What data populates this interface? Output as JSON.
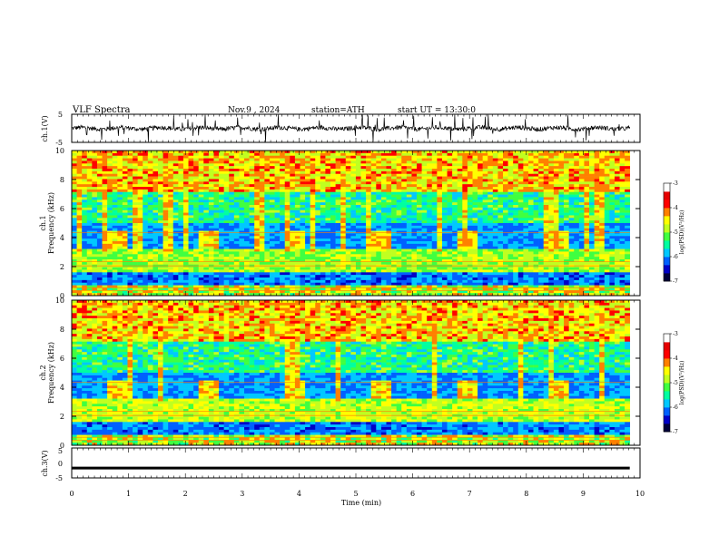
{
  "header": {
    "title": "VLF  Spectra",
    "date": "Nov.9  , 2024",
    "station": "station=ATH",
    "start": "start  UT  =   13:30:0"
  },
  "colors": {
    "colormap": [
      "#00003a",
      "#0000c8",
      "#0060ff",
      "#00c8ff",
      "#00ffa0",
      "#40ff40",
      "#c0ff20",
      "#ffff00",
      "#ff8000",
      "#ff0000",
      "#e60000",
      "#ffffff"
    ]
  },
  "chart_data": [
    {
      "type": "line",
      "panel": "ch1-waveform",
      "ylabel": "ch.1(V)",
      "ylim": [
        -5,
        5
      ],
      "yticks": [
        "5",
        "-5"
      ],
      "xlim": [
        0,
        10
      ],
      "description_values": {
        "baseline": 0,
        "noise_amplitude": 1,
        "spike_max": 5
      }
    },
    {
      "type": "heatmap",
      "panel": "ch1-spectrogram",
      "label": "ch.1",
      "ylabel": "Frequency (kHz)",
      "ylim": [
        0,
        10
      ],
      "yticks": [
        "0",
        "2",
        "4",
        "6",
        "8",
        "10"
      ],
      "xlim": [
        0,
        10
      ],
      "bursts_min": [
        0.62,
        2.2,
        3.75,
        5.28,
        6.8,
        8.38
      ],
      "colorbar": {
        "label": "log(PSD)(V²/Hz)",
        "range": [
          -7,
          -3
        ],
        "ticks": [
          "-3",
          "-4",
          "-5",
          "-6",
          "-7"
        ]
      }
    },
    {
      "type": "heatmap",
      "panel": "ch2-spectrogram",
      "label": "ch.2",
      "ylabel": "Frequency (kHz)",
      "ylim": [
        0,
        10
      ],
      "yticks": [
        "0",
        "2",
        "4",
        "6",
        "8",
        "10"
      ],
      "xlim": [
        0,
        10
      ],
      "bursts_min": [
        0.62,
        2.2,
        3.75,
        5.28,
        6.8,
        8.38
      ],
      "colorbar": {
        "label": "log(PSD)(V²/Hz)",
        "range": [
          -7,
          -3
        ],
        "ticks": [
          "-3",
          "-4",
          "-5",
          "-6",
          "-7"
        ]
      }
    },
    {
      "type": "line",
      "panel": "ch3-waveform",
      "ylabel": "ch.3(V)",
      "ylim": [
        -5,
        5
      ],
      "yticks": [
        "5",
        "0",
        "-5"
      ],
      "xlim": [
        0,
        10
      ],
      "xlabel": "Time  (min)",
      "xticks": [
        "0",
        "1",
        "2",
        "3",
        "4",
        "5",
        "6",
        "7",
        "8",
        "9",
        "10"
      ],
      "description_values": {
        "level": -1.7
      }
    }
  ]
}
